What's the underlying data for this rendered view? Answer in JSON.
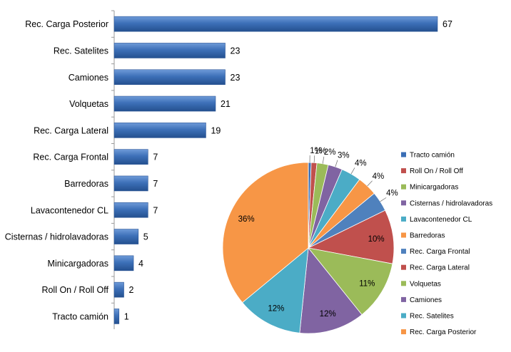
{
  "chart_data": [
    {
      "type": "bar",
      "orientation": "horizontal",
      "categories": [
        "Rec. Carga Posterior",
        "Rec. Satelites",
        "Camiones",
        "Volquetas",
        "Rec. Carga Lateral",
        "Rec. Carga Frontal",
        "Barredoras",
        "Lavacontenedor CL",
        "Cisternas / hidrolavadoras",
        "Minicargadoras",
        "Roll On / Roll Off",
        "Tracto camión"
      ],
      "values": [
        67,
        23,
        23,
        21,
        19,
        7,
        7,
        7,
        5,
        4,
        2,
        1
      ],
      "data_labels": [
        "67",
        "23",
        "23",
        "21",
        "19",
        "7",
        "7",
        "7",
        "5",
        "4",
        "2",
        "1"
      ],
      "xlim": [
        0,
        70
      ],
      "color": "#3A6EB5",
      "grid": false,
      "title": "",
      "xlabel": "",
      "ylabel": ""
    },
    {
      "type": "pie",
      "categories": [
        "Tracto camión",
        "Roll On / Roll Off",
        "Minicargadoras",
        "Cisternas / hidrolavadoras",
        "Lavacontenedor CL",
        "Barredoras",
        "Rec. Carga Frontal",
        "Rec. Carga Lateral",
        "Volquetas",
        "Camiones",
        "Rec. Satelites",
        "Rec. Carga Posterior"
      ],
      "values": [
        1,
        2,
        4,
        5,
        7,
        7,
        7,
        19,
        21,
        23,
        23,
        67
      ],
      "percent_labels": [
        "1%",
        "1%",
        "2%",
        "3%",
        "4%",
        "4%",
        "4%",
        "10%",
        "11%",
        "12%",
        "12%",
        "36%"
      ],
      "colors": [
        "#3A6EB5",
        "#C0504D",
        "#9BBB59",
        "#8064A2",
        "#4BACC6",
        "#F79646",
        "#4F81BD",
        "#C0504D",
        "#9BBB59",
        "#8064A2",
        "#4BACC6",
        "#F79646"
      ],
      "legend_position": "right",
      "title": ""
    }
  ]
}
